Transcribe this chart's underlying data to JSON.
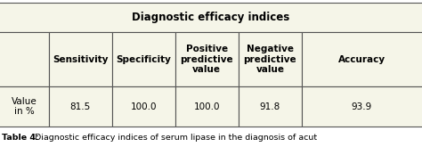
{
  "title_row": "Diagnostic efficacy indices",
  "col_headers": [
    "Sensitivity",
    "Specificity",
    "Positive\npredictive\nvalue",
    "Negative\npredictive\nvalue",
    "Accuracy"
  ],
  "row_label": "Value\nin %",
  "values": [
    "81.5",
    "100.0",
    "100.0",
    "91.8",
    "93.9"
  ],
  "caption_bold": "Table 4:",
  "caption_regular": " Diagnostic efficacy indices of serum lipase in the diagnosis of acut",
  "bg_color": "#f5f5e8",
  "border_color": "#555555",
  "text_color": "#000000",
  "fig_width": 4.74,
  "fig_height": 1.65,
  "dpi": 100
}
